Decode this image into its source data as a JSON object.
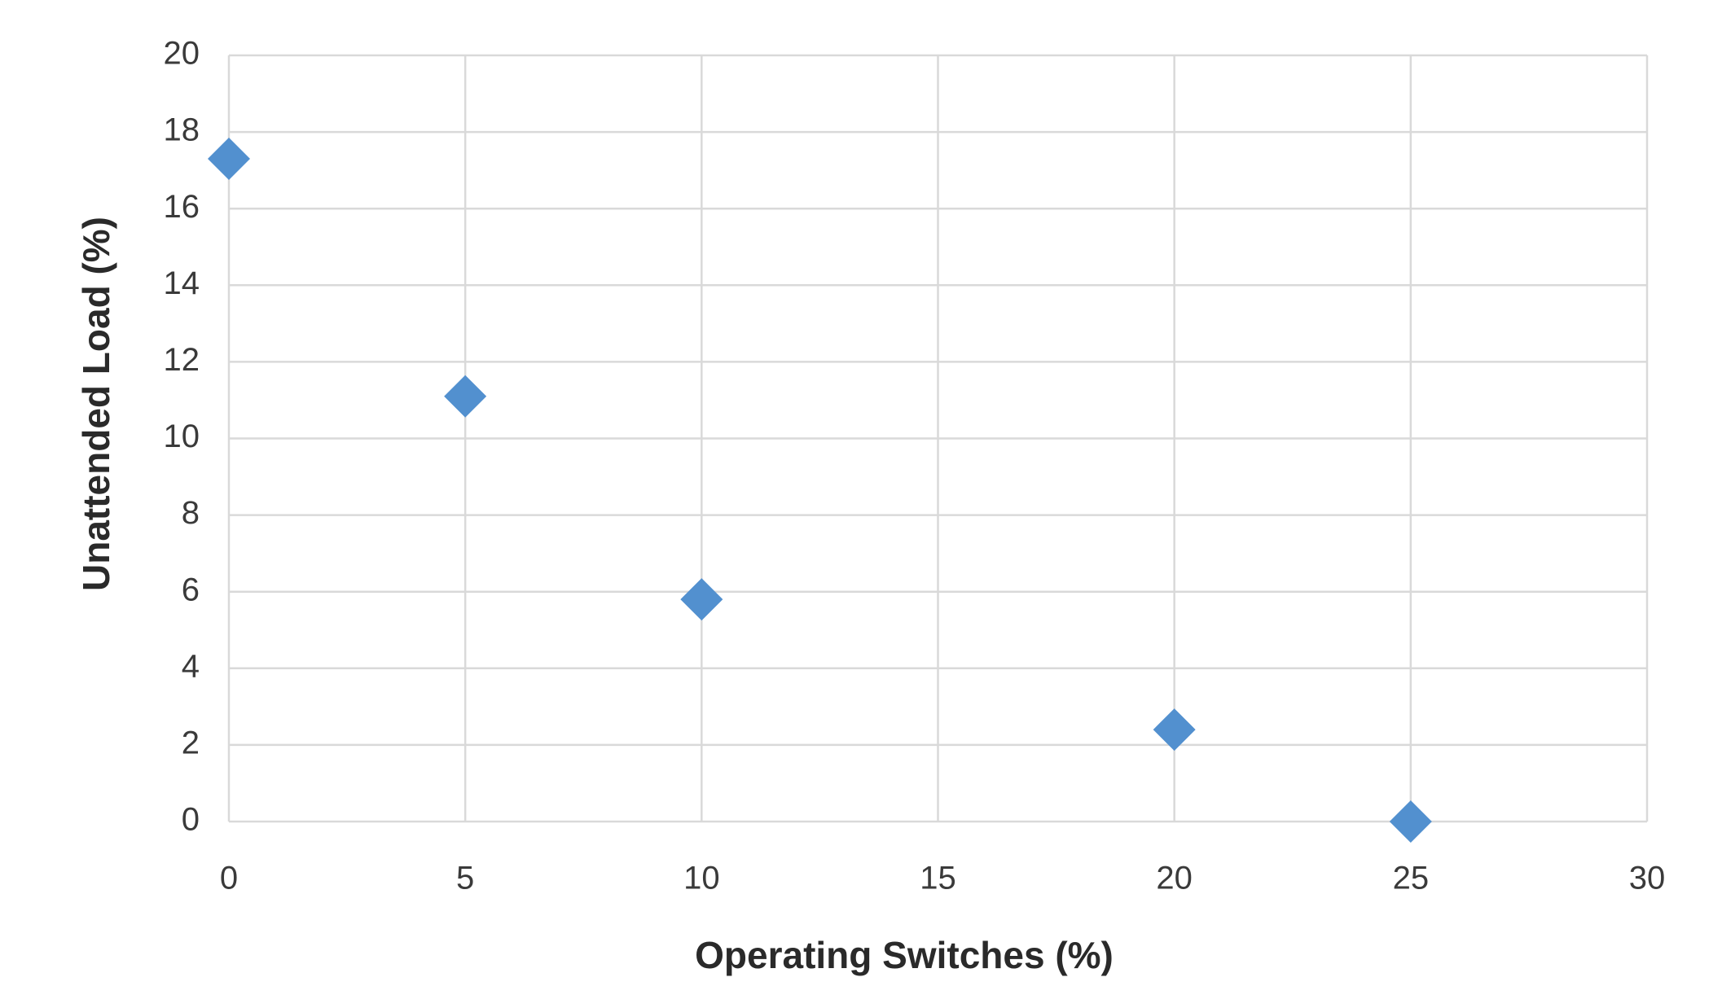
{
  "chart_data": {
    "type": "scatter",
    "x_label": "Operating Switches (%)",
    "y_label": "Unattended Load (%)",
    "series": [
      {
        "color": "#5290cf",
        "x": [
          0,
          5,
          10,
          20,
          25
        ],
        "values": [
          17.3,
          11.1,
          5.8,
          2.4,
          0
        ]
      }
    ],
    "xlim": [
      0,
      30
    ],
    "xticks": [
      0,
      5,
      10,
      15,
      20,
      25,
      30
    ],
    "ylim": [
      0,
      20
    ],
    "yticks": [
      0,
      2,
      4,
      6,
      8,
      10,
      12,
      14,
      16,
      18,
      20
    ],
    "grid": true,
    "marker": "diamond"
  }
}
